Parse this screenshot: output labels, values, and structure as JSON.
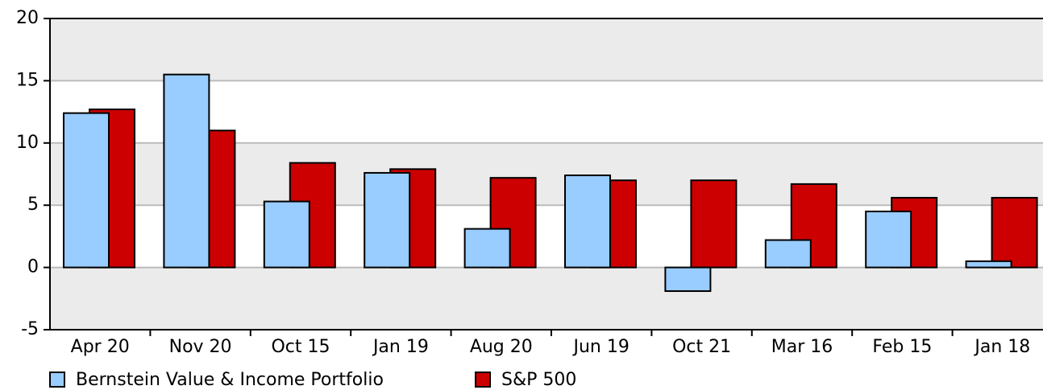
{
  "chart_data": {
    "type": "bar",
    "categories": [
      "Apr 20",
      "Nov 20",
      "Oct 15",
      "Jan 19",
      "Aug 20",
      "Jun 19",
      "Oct 21",
      "Mar 16",
      "Feb 15",
      "Jan 18"
    ],
    "series": [
      {
        "name": "Bernstein Value & Income Portfolio",
        "color": "#99ccff",
        "values": [
          12.4,
          15.5,
          5.3,
          7.6,
          3.1,
          7.4,
          -1.9,
          2.2,
          4.5,
          0.5
        ]
      },
      {
        "name": "S&P 500",
        "color": "#cc0000",
        "values": [
          12.7,
          11.0,
          8.4,
          7.9,
          7.2,
          7.0,
          7.0,
          6.7,
          5.6,
          5.6
        ]
      }
    ],
    "ylim": [
      -5,
      20
    ],
    "yticks": [
      -5,
      0,
      5,
      10,
      15,
      20
    ],
    "grid": true
  }
}
